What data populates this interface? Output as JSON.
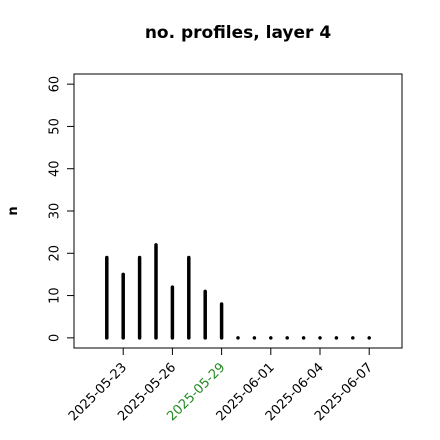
{
  "chart_data": {
    "type": "lollipop-h",
    "title": "no. profiles, layer 4",
    "ylabel": "n",
    "x": [
      "2025-05-22",
      "2025-05-23",
      "2025-05-24",
      "2025-05-25",
      "2025-05-26",
      "2025-05-27",
      "2025-05-28",
      "2025-05-29",
      "2025-05-30",
      "2025-05-31",
      "2025-06-01",
      "2025-06-02",
      "2025-06-03",
      "2025-06-04",
      "2025-06-05",
      "2025-06-06",
      "2025-06-07"
    ],
    "values": [
      19,
      15,
      19,
      22,
      12,
      19,
      11,
      8,
      0,
      0,
      0,
      0,
      0,
      0,
      0,
      0,
      0
    ],
    "color": "#000000",
    "xlim": [
      "2025-05-20",
      "2025-06-09"
    ],
    "xticks": [
      "2025-05-23",
      "2025-05-26",
      "2025-05-29",
      "2025-06-01",
      "2025-06-04",
      "2025-06-07"
    ],
    "xtick_colors": [
      "#000000",
      "#000000",
      "#228B22",
      "#000000",
      "#000000",
      "#000000"
    ],
    "ylim": [
      -2.4,
      62.4
    ],
    "yticks": [
      0,
      10,
      20,
      30,
      40,
      50,
      60
    ]
  }
}
